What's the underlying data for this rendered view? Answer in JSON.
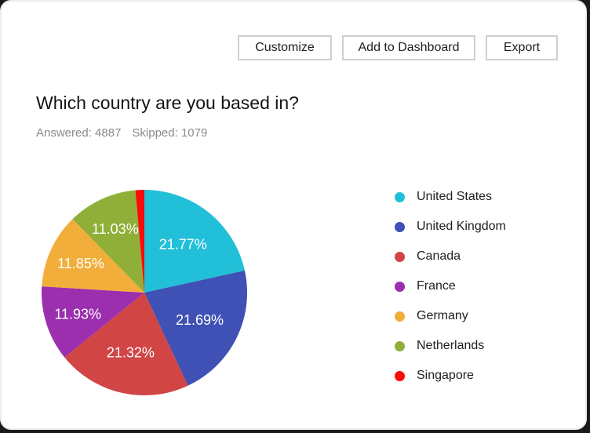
{
  "toolbar": {
    "customize_label": "Customize",
    "add_to_dashboard_label": "Add to Dashboard",
    "export_label": "Export"
  },
  "question": {
    "title": "Which country are you based in?",
    "answered": "Answered: 4887",
    "skipped": "Skipped: 1079"
  },
  "legend": [
    {
      "label": "United States",
      "color": "#22c0d8"
    },
    {
      "label": "United Kingdom",
      "color": "#3f51b5"
    },
    {
      "label": "Canada",
      "color": "#d14545"
    },
    {
      "label": "France",
      "color": "#9c2fae"
    },
    {
      "label": "Germany",
      "color": "#f2ae3a"
    },
    {
      "label": "Netherlands",
      "color": "#8faf38"
    },
    {
      "label": "Singapore",
      "color": "#ff0a0a"
    }
  ],
  "chart_data": {
    "type": "pie",
    "title": "Which country are you based in?",
    "categories": [
      "United States",
      "United Kingdom",
      "Canada",
      "France",
      "Germany",
      "Netherlands",
      "Singapore"
    ],
    "values": [
      21.77,
      21.69,
      21.32,
      11.93,
      11.85,
      11.03,
      null
    ],
    "labels": [
      "21.77%",
      "21.69%",
      "21.32%",
      "11.93%",
      "11.85%",
      "11.03%",
      ""
    ],
    "colors": [
      "#22c0d8",
      "#3f51b5",
      "#d14545",
      "#9c2fae",
      "#f2ae3a",
      "#8faf38",
      "#ff0a0a"
    ],
    "start_angle": "12 o'clock, clockwise",
    "legend_position": "right",
    "unit": "%"
  }
}
